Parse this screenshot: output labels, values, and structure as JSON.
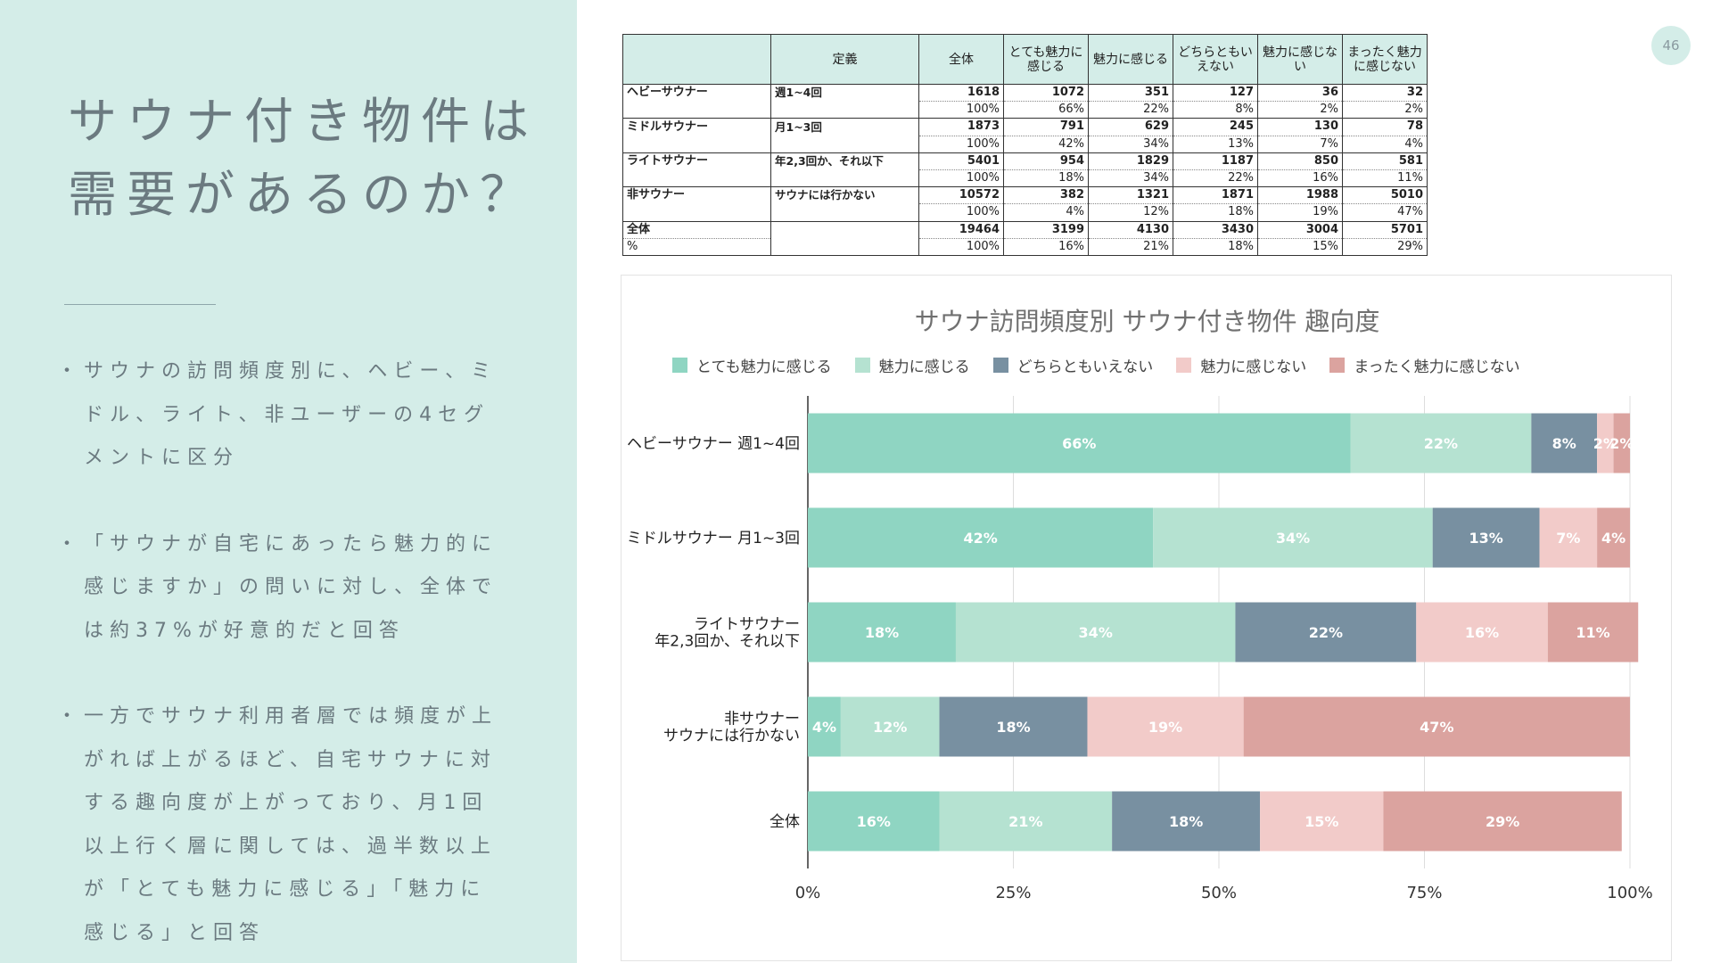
{
  "page_number": "46",
  "title_lines": [
    "サウナ付き物件は",
    "需要があるのか？"
  ],
  "bullets": [
    "サウナの訪問頻度別に、ヘビー、ミドル、ライト、非ユーザーの4セグメントに区分",
    "「サウナが自宅にあったら魅力的に感じますか」の問いに対し、全体では約37%が好意的だと回答",
    "一方でサウナ利用者層では頻度が上がれば上がるほど、自宅サウナに対する趣向度が上がっており、月1回以上行く層に関しては、過半数以上が「とても魅力に感じる」「魅力に感じる」と回答"
  ],
  "table": {
    "headers": [
      "",
      "定義",
      "全体",
      "とても魅力に感じる",
      "魅力に感じる",
      "どちらともいえない",
      "魅力に感じない",
      "まったく魅力に感じない"
    ],
    "groups": [
      {
        "segment": "ヘビーサウナー",
        "definition": "週1~4回",
        "counts": [
          "1618",
          "1072",
          "351",
          "127",
          "36",
          "32"
        ],
        "pcts": [
          "100%",
          "66%",
          "22%",
          "8%",
          "2%",
          "2%"
        ]
      },
      {
        "segment": "ミドルサウナー",
        "definition": "月1~3回",
        "counts": [
          "1873",
          "791",
          "629",
          "245",
          "130",
          "78"
        ],
        "pcts": [
          "100%",
          "42%",
          "34%",
          "13%",
          "7%",
          "4%"
        ]
      },
      {
        "segment": "ライトサウナー",
        "definition": "年2,3回か、それ以下",
        "counts": [
          "5401",
          "954",
          "1829",
          "1187",
          "850",
          "581"
        ],
        "pcts": [
          "100%",
          "18%",
          "34%",
          "22%",
          "16%",
          "11%"
        ]
      },
      {
        "segment": "非サウナー",
        "definition": "サウナには行かない",
        "counts": [
          "10572",
          "382",
          "1321",
          "1871",
          "1988",
          "5010"
        ],
        "pcts": [
          "100%",
          "4%",
          "12%",
          "18%",
          "19%",
          "47%"
        ]
      },
      {
        "segment": "全体",
        "definition": "",
        "counts": [
          "19464",
          "3199",
          "4130",
          "3430",
          "3004",
          "5701"
        ],
        "pcts": [
          "100%",
          "16%",
          "21%",
          "18%",
          "15%",
          "29%"
        ],
        "pct_label": "%"
      }
    ]
  },
  "chart_data": {
    "type": "bar",
    "orientation": "horizontal",
    "stacked": true,
    "title": "サウナ訪問頻度別 サウナ付き物件 趣向度",
    "categories": [
      [
        "ヘビーサウナー 週1~4回"
      ],
      [
        "ミドルサウナー 月1~3回"
      ],
      [
        "ライトサウナー",
        "年2,3回か、それ以下"
      ],
      [
        "非サウナー",
        "サウナには行かない"
      ],
      [
        "全体"
      ]
    ],
    "series": [
      {
        "name": "とても魅力に感じる",
        "color": "#8fd5c2",
        "values": [
          66,
          42,
          18,
          4,
          16
        ]
      },
      {
        "name": "魅力に感じる",
        "color": "#b5e2d1",
        "values": [
          22,
          34,
          34,
          12,
          21
        ]
      },
      {
        "name": "どちらともいえない",
        "color": "#7890a1",
        "values": [
          8,
          13,
          22,
          18,
          18
        ]
      },
      {
        "name": "魅力に感じない",
        "color": "#f2cbc9",
        "values": [
          2,
          7,
          16,
          19,
          15
        ]
      },
      {
        "name": "まったく魅力に感じない",
        "color": "#dba39f",
        "values": [
          2,
          4,
          11,
          47,
          29
        ]
      }
    ],
    "xlim": [
      0,
      100
    ],
    "xticks": [
      "0%",
      "25%",
      "50%",
      "75%",
      "100%"
    ],
    "legend_position": "top"
  }
}
